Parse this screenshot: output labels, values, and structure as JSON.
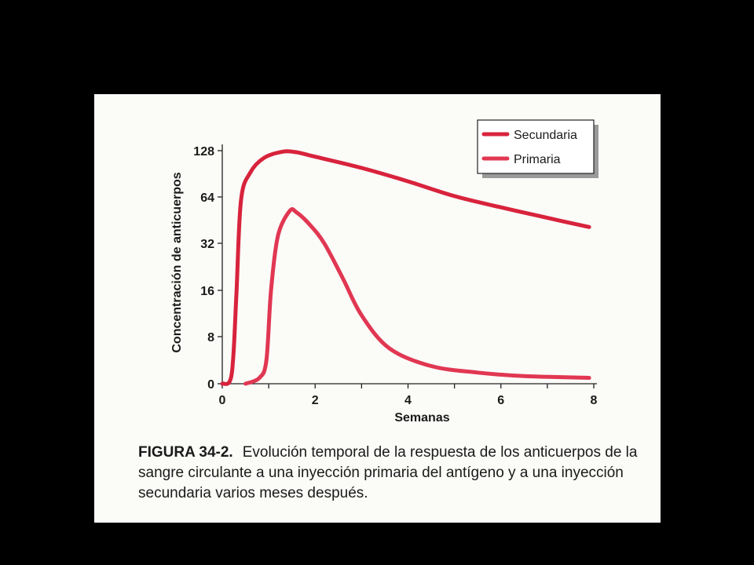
{
  "chart_data": {
    "type": "line",
    "title": "",
    "xlabel": "Semanas",
    "ylabel": "Concentración de anticuerpos",
    "xlim": [
      0,
      8
    ],
    "y_scale": "log2",
    "x_ticks": [
      "0",
      "2",
      "4",
      "6",
      "8"
    ],
    "x_tick_values": [
      0,
      2,
      4,
      6,
      8
    ],
    "y_ticks": [
      "0",
      "8",
      "16",
      "32",
      "64",
      "128"
    ],
    "y_tick_values": [
      0,
      8,
      16,
      32,
      64,
      128
    ],
    "grid": false,
    "legend_position": "top-right",
    "series": [
      {
        "name": "Secundaria",
        "color": "#d8233c",
        "points": [
          [
            0,
            0
          ],
          [
            0.2,
            1.5
          ],
          [
            0.3,
            14
          ],
          [
            0.4,
            60
          ],
          [
            0.6,
            92
          ],
          [
            0.9,
            115
          ],
          [
            1.3,
            126
          ],
          [
            1.6,
            125
          ],
          [
            2.0,
            117
          ],
          [
            3.0,
            99
          ],
          [
            4.0,
            81
          ],
          [
            5.0,
            65
          ],
          [
            6.0,
            55
          ],
          [
            7.0,
            47
          ],
          [
            7.9,
            41
          ]
        ]
      },
      {
        "name": "Primaria",
        "color": "#e13752",
        "points": [
          [
            0.5,
            0
          ],
          [
            0.8,
            1.0
          ],
          [
            0.95,
            4
          ],
          [
            1.05,
            16
          ],
          [
            1.2,
            36
          ],
          [
            1.45,
            52
          ],
          [
            1.6,
            51
          ],
          [
            1.9,
            42
          ],
          [
            2.2,
            32
          ],
          [
            2.6,
            19
          ],
          [
            3.0,
            11
          ],
          [
            3.6,
            6
          ],
          [
            4.5,
            3
          ],
          [
            5.5,
            1.9
          ],
          [
            6.5,
            1.3
          ],
          [
            7.9,
            1.0
          ]
        ]
      }
    ]
  },
  "caption": {
    "figure_label": "FIGURA 34-2.",
    "text": "Evolución temporal de la respuesta de los anticuerpos de la sangre circulante a una inyección primaria del antígeno y a una inyección secundaria varios meses después."
  }
}
